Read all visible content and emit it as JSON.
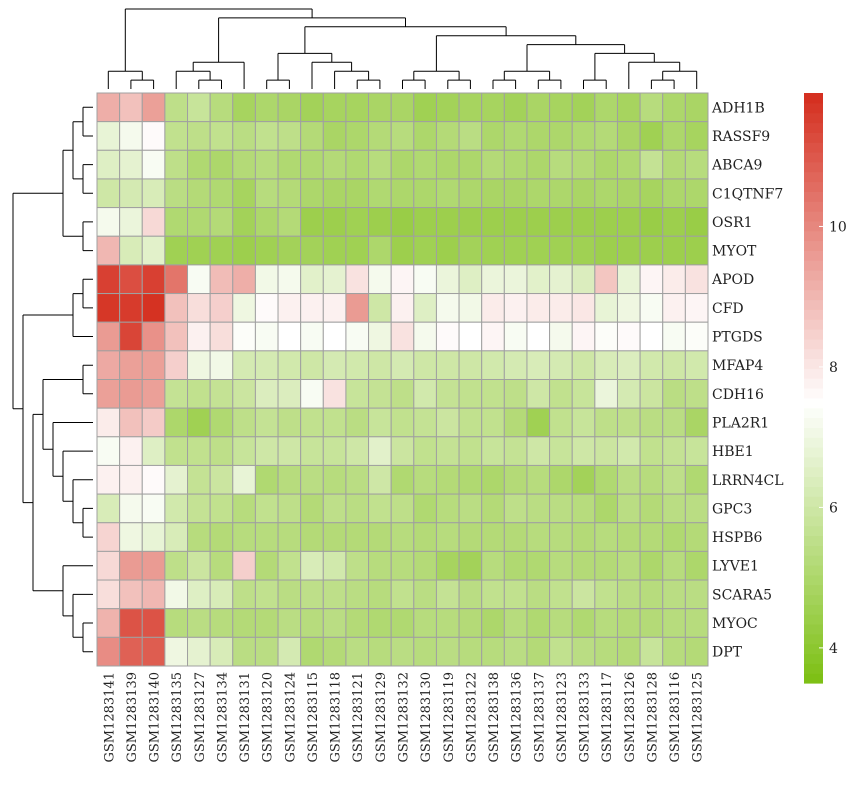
{
  "chart_data": {
    "type": "heatmap",
    "title": "",
    "rows": [
      "ADH1B",
      "RASSF9",
      "ABCA9",
      "C1QTNF7",
      "OSR1",
      "MYOT",
      "APOD",
      "CFD",
      "PTGDS",
      "MFAP4",
      "CDH16",
      "PLA2R1",
      "HBE1",
      "LRRN4CL",
      "GPC3",
      "HSPB6",
      "LYVE1",
      "SCARA5",
      "MYOC",
      "DPT"
    ],
    "columns": [
      "GSM1283141",
      "GSM1283139",
      "GSM1283140",
      "GSM1283135",
      "GSM1283127",
      "GSM1283134",
      "GSM1283131",
      "GSM1283120",
      "GSM1283124",
      "GSM1283115",
      "GSM1283118",
      "GSM1283121",
      "GSM1283129",
      "GSM1283132",
      "GSM1283130",
      "GSM1283119",
      "GSM1283122",
      "GSM1283138",
      "GSM1283136",
      "GSM1283137",
      "GSM1283123",
      "GSM1283133",
      "GSM1283117",
      "GSM1283126",
      "GSM1283128",
      "GSM1283116",
      "GSM1283125"
    ],
    "values": [
      [
        9.2,
        8.8,
        9.5,
        5.5,
        5.8,
        5.3,
        4.8,
        5.0,
        4.9,
        4.7,
        4.8,
        4.8,
        4.9,
        4.9,
        4.6,
        4.7,
        4.8,
        4.8,
        4.7,
        4.9,
        4.8,
        4.7,
        5.0,
        4.8,
        5.3,
        5.0,
        4.9
      ],
      [
        6.8,
        7.2,
        7.6,
        5.6,
        5.5,
        5.6,
        5.4,
        5.6,
        5.5,
        5.2,
        4.9,
        5.0,
        5.2,
        5.3,
        5.0,
        5.2,
        5.4,
        5.0,
        5.1,
        5.0,
        5.0,
        5.1,
        5.2,
        4.9,
        4.6,
        5.0,
        4.8
      ],
      [
        6.5,
        6.7,
        7.3,
        5.5,
        5.1,
        5.0,
        5.2,
        5.3,
        5.1,
        5.1,
        5.2,
        5.1,
        5.3,
        5.0,
        5.1,
        5.0,
        5.0,
        5.2,
        5.1,
        5.0,
        5.3,
        5.2,
        5.0,
        5.1,
        5.7,
        5.2,
        5.3
      ],
      [
        6.0,
        6.2,
        6.3,
        5.4,
        5.2,
        5.1,
        4.8,
        5.3,
        5.2,
        5.0,
        4.9,
        4.9,
        5.1,
        5.0,
        5.0,
        5.1,
        5.0,
        4.9,
        4.9,
        5.0,
        5.0,
        4.9,
        5.0,
        4.9,
        4.8,
        5.0,
        5.0
      ],
      [
        7.2,
        6.9,
        8.3,
        5.1,
        5.1,
        5.2,
        4.7,
        5.0,
        5.2,
        4.5,
        4.5,
        4.6,
        4.5,
        4.4,
        4.5,
        4.5,
        4.5,
        4.5,
        4.5,
        4.5,
        4.5,
        4.5,
        4.5,
        4.5,
        4.4,
        4.5,
        4.4
      ],
      [
        9.0,
        6.3,
        6.6,
        4.6,
        4.6,
        4.6,
        4.5,
        4.6,
        4.7,
        4.7,
        4.6,
        4.6,
        5.0,
        4.5,
        4.6,
        4.5,
        4.7,
        4.6,
        4.6,
        4.6,
        4.6,
        4.6,
        4.5,
        4.5,
        4.5,
        4.5,
        4.5
      ],
      [
        11.5,
        11.2,
        11.5,
        10.4,
        7.3,
        8.9,
        9.2,
        7.1,
        7.2,
        6.6,
        6.7,
        8.1,
        7.2,
        7.7,
        7.3,
        6.9,
        6.5,
        6.9,
        6.9,
        6.6,
        6.7,
        6.4,
        8.7,
        6.8,
        7.7,
        7.9,
        8.1
      ],
      [
        11.7,
        11.6,
        11.8,
        8.8,
        8.2,
        8.5,
        7.0,
        7.6,
        7.8,
        7.8,
        7.8,
        9.6,
        6.0,
        7.8,
        6.5,
        7.2,
        7.1,
        7.9,
        7.8,
        7.9,
        7.9,
        8.0,
        6.8,
        7.0,
        7.3,
        7.8,
        7.7
      ],
      [
        9.6,
        11.4,
        9.8,
        8.8,
        7.8,
        8.2,
        7.4,
        7.3,
        7.5,
        7.3,
        7.5,
        7.3,
        7.0,
        8.1,
        7.2,
        7.6,
        7.5,
        7.7,
        7.3,
        7.5,
        7.2,
        7.7,
        7.4,
        7.6,
        7.5,
        7.3,
        7.4
      ],
      [
        9.3,
        9.5,
        9.5,
        8.5,
        7.0,
        7.1,
        6.2,
        6.2,
        6.1,
        6.0,
        6.2,
        6.1,
        6.0,
        6.2,
        6.0,
        6.0,
        6.0,
        6.1,
        6.2,
        6.3,
        6.2,
        6.0,
        6.3,
        6.4,
        6.1,
        6.0,
        6.1
      ],
      [
        9.5,
        9.6,
        9.5,
        5.7,
        5.6,
        5.7,
        5.9,
        6.4,
        6.4,
        7.3,
        8.1,
        5.8,
        5.7,
        5.5,
        6.1,
        5.7,
        5.6,
        5.6,
        5.5,
        6.0,
        5.6,
        5.8,
        6.9,
        6.2,
        5.9,
        5.4,
        5.5
      ],
      [
        7.9,
        8.8,
        8.6,
        5.0,
        4.6,
        5.1,
        5.5,
        5.7,
        5.5,
        5.6,
        5.6,
        5.4,
        5.8,
        5.6,
        5.7,
        5.9,
        5.6,
        5.6,
        5.2,
        4.6,
        5.6,
        5.8,
        5.5,
        5.5,
        5.4,
        5.4,
        4.9
      ],
      [
        7.3,
        7.8,
        6.5,
        5.6,
        5.6,
        5.5,
        5.8,
        6.0,
        6.0,
        5.8,
        5.8,
        6.0,
        6.6,
        5.9,
        5.6,
        5.7,
        5.6,
        5.8,
        5.7,
        6.0,
        5.8,
        6.0,
        5.9,
        6.1,
        5.6,
        5.7,
        5.8
      ],
      [
        7.8,
        7.8,
        7.6,
        6.7,
        5.7,
        5.9,
        6.8,
        5.1,
        5.3,
        5.4,
        5.3,
        5.4,
        6.0,
        5.1,
        5.3,
        5.2,
        5.1,
        5.0,
        5.2,
        5.3,
        5.0,
        4.7,
        5.1,
        5.4,
        5.3,
        5.5,
        5.1
      ],
      [
        6.3,
        7.2,
        7.3,
        6.1,
        5.7,
        5.6,
        5.3,
        5.6,
        5.5,
        5.2,
        5.5,
        5.4,
        5.6,
        5.5,
        5.1,
        5.3,
        5.4,
        5.2,
        5.5,
        5.4,
        5.4,
        5.3,
        5.0,
        5.4,
        5.2,
        5.4,
        5.4
      ],
      [
        8.4,
        7.0,
        6.8,
        6.3,
        5.3,
        5.2,
        5.3,
        5.3,
        5.3,
        5.2,
        5.2,
        5.2,
        5.2,
        5.3,
        5.2,
        5.3,
        5.2,
        5.2,
        5.2,
        5.3,
        5.3,
        5.2,
        5.3,
        5.2,
        5.2,
        5.1,
        5.2
      ],
      [
        8.3,
        9.6,
        9.6,
        5.5,
        5.9,
        5.3,
        8.5,
        5.2,
        5.6,
        6.3,
        6.1,
        5.5,
        5.3,
        5.3,
        5.2,
        4.8,
        4.7,
        5.3,
        5.1,
        5.1,
        5.3,
        5.2,
        5.2,
        5.3,
        5.0,
        5.3,
        5.0
      ],
      [
        8.2,
        8.8,
        9.0,
        7.1,
        6.5,
        6.3,
        5.5,
        5.6,
        5.4,
        5.5,
        5.5,
        5.4,
        5.3,
        5.6,
        5.4,
        5.7,
        5.4,
        5.6,
        5.6,
        5.4,
        5.6,
        5.9,
        5.6,
        5.4,
        5.3,
        5.4,
        5.4
      ],
      [
        9.1,
        11.1,
        11.1,
        5.3,
        5.4,
        5.3,
        5.2,
        5.2,
        5.4,
        5.3,
        5.4,
        5.2,
        5.1,
        5.1,
        5.3,
        5.3,
        5.2,
        5.0,
        5.3,
        5.1,
        5.3,
        5.1,
        5.3,
        5.2,
        5.2,
        5.3,
        5.3
      ],
      [
        9.9,
        10.8,
        10.9,
        7.0,
        6.7,
        6.3,
        5.4,
        5.4,
        6.2,
        5.1,
        5.2,
        5.4,
        5.3,
        5.4,
        5.3,
        5.4,
        5.3,
        5.3,
        5.4,
        5.2,
        5.6,
        5.4,
        5.3,
        5.2,
        5.8,
        5.3,
        5.2
      ]
    ],
    "colorbar": {
      "min": 3.5,
      "max": 11.9,
      "ticks": [
        4,
        6,
        8,
        10
      ]
    },
    "colors": {
      "low": "#7cbf12",
      "mid": "#ffffff",
      "high": "#d42d1d",
      "midpoint": 7.5
    },
    "grid": true,
    "legend_position": "right"
  }
}
